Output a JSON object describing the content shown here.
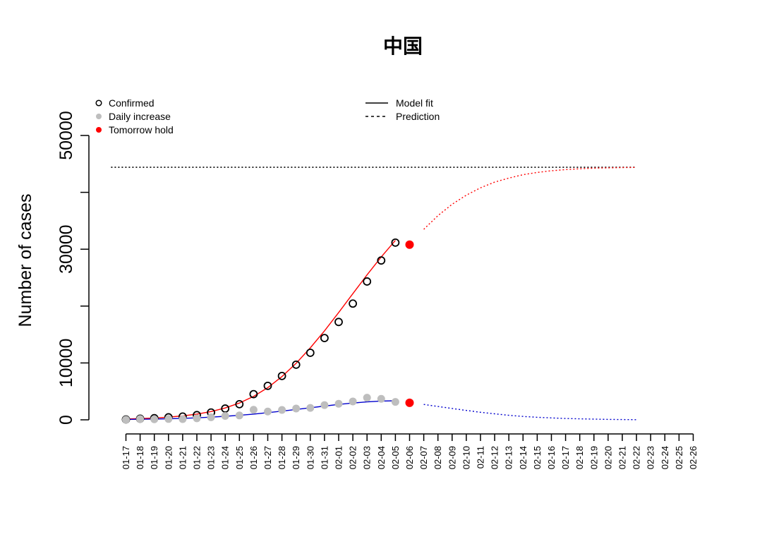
{
  "chart_data": {
    "type": "scatter",
    "title": "中国",
    "xlabel": "",
    "ylabel": "Number of cases",
    "ylim": [
      0,
      50000
    ],
    "y_ticks": [
      0,
      10000,
      30000,
      50000
    ],
    "y_tick_labels": [
      "0",
      "10000",
      "30000",
      "50000"
    ],
    "categories": [
      "01-17",
      "01-18",
      "01-19",
      "01-20",
      "01-21",
      "01-22",
      "01-23",
      "01-24",
      "01-25",
      "01-26",
      "01-27",
      "01-28",
      "01-29",
      "01-30",
      "01-31",
      "02-01",
      "02-02",
      "02-03",
      "02-04",
      "02-05",
      "02-06",
      "02-07",
      "02-08",
      "02-09",
      "02-10",
      "02-11",
      "02-12",
      "02-13",
      "02-14",
      "02-15",
      "02-16",
      "02-17",
      "02-18",
      "02-19",
      "02-20",
      "02-21",
      "02-22",
      "02-23",
      "02-24",
      "02-25",
      "02-26"
    ],
    "series": [
      {
        "name": "Confirmed",
        "kind": "points",
        "color": "#000000",
        "x": [
          "01-17",
          "01-18",
          "01-19",
          "01-20",
          "01-21",
          "01-22",
          "01-23",
          "01-24",
          "01-25",
          "01-26",
          "01-27",
          "01-28",
          "01-29",
          "01-30",
          "01-31",
          "02-01",
          "02-02",
          "02-03",
          "02-04",
          "02-05"
        ],
        "values": [
          62,
          198,
          291,
          440,
          571,
          830,
          1287,
          1975,
          2744,
          4515,
          5974,
          7711,
          9692,
          11791,
          14380,
          17205,
          20438,
          24324,
          28018,
          31161
        ]
      },
      {
        "name": "Daily increase",
        "kind": "points",
        "color": "#bebebe",
        "x": [
          "01-17",
          "01-18",
          "01-19",
          "01-20",
          "01-21",
          "01-22",
          "01-23",
          "01-24",
          "01-25",
          "01-26",
          "01-27",
          "01-28",
          "01-29",
          "01-30",
          "01-31",
          "02-01",
          "02-02",
          "02-03",
          "02-04",
          "02-05"
        ],
        "values": [
          20,
          136,
          93,
          149,
          131,
          259,
          457,
          688,
          769,
          1771,
          1459,
          1737,
          1981,
          2099,
          2589,
          2825,
          3233,
          3886,
          3694,
          3143
        ]
      },
      {
        "name": "Tomorrow hold",
        "kind": "points",
        "color": "#ff0000",
        "x": [
          "02-06",
          "02-06"
        ],
        "values": [
          30800,
          3000
        ]
      },
      {
        "name": "Model fit",
        "kind": "line",
        "color": "#ff0000",
        "x": [
          "01-17",
          "01-18",
          "01-19",
          "01-20",
          "01-21",
          "01-22",
          "01-23",
          "01-24",
          "01-25",
          "01-26",
          "01-27",
          "01-28",
          "01-29",
          "01-30",
          "01-31",
          "02-01",
          "02-02",
          "02-03",
          "02-04",
          "02-05"
        ],
        "values": [
          150,
          220,
          320,
          470,
          690,
          1000,
          1450,
          2080,
          2950,
          4120,
          5660,
          7600,
          9940,
          12650,
          15650,
          18870,
          22180,
          25480,
          28640,
          31550
        ]
      },
      {
        "name": "Model fit",
        "kind": "line",
        "color": "#0000cd",
        "x": [
          "01-17",
          "01-18",
          "01-19",
          "01-20",
          "01-21",
          "01-22",
          "01-23",
          "01-24",
          "01-25",
          "01-26",
          "01-27",
          "01-28",
          "01-29",
          "01-30",
          "01-31",
          "02-01",
          "02-02",
          "02-03",
          "02-04",
          "02-05"
        ],
        "values": [
          70,
          100,
          140,
          190,
          260,
          350,
          470,
          620,
          800,
          1010,
          1260,
          1530,
          1820,
          2120,
          2420,
          2700,
          2950,
          3150,
          3300,
          3350
        ]
      },
      {
        "name": "Prediction",
        "kind": "dotted",
        "color": "#ff0000",
        "x": [
          "02-07",
          "02-08",
          "02-09",
          "02-10",
          "02-11",
          "02-12",
          "02-13",
          "02-14",
          "02-15",
          "02-16",
          "02-17",
          "02-18",
          "02-19",
          "02-20",
          "02-21",
          "02-22"
        ],
        "values": [
          33500,
          35900,
          37900,
          39500,
          40800,
          41800,
          42500,
          43100,
          43500,
          43800,
          44000,
          44150,
          44250,
          44300,
          44350,
          44380
        ]
      },
      {
        "name": "Prediction",
        "kind": "dotted",
        "color": "#0000cd",
        "x": [
          "02-07",
          "02-08",
          "02-09",
          "02-10",
          "02-11",
          "02-12",
          "02-13",
          "02-14",
          "02-15",
          "02-16",
          "02-17",
          "02-18",
          "02-19",
          "02-20",
          "02-21",
          "02-22"
        ],
        "values": [
          2700,
          2350,
          2000,
          1650,
          1330,
          1050,
          800,
          600,
          450,
          330,
          240,
          170,
          120,
          80,
          50,
          30
        ]
      },
      {
        "name": "",
        "kind": "hline",
        "color": "#000000",
        "x": [
          "01-16",
          "02-22"
        ],
        "values": [
          44400,
          44400
        ]
      }
    ],
    "legend": {
      "left": [
        {
          "label": "Confirmed",
          "marker": "open-circle",
          "color": "#000000"
        },
        {
          "label": "Daily increase",
          "marker": "filled-circle",
          "color": "#bebebe"
        },
        {
          "label": "Tomorrow hold",
          "marker": "filled-circle",
          "color": "#ff0000"
        }
      ],
      "right": [
        {
          "label": "Model fit",
          "style": "solid",
          "color": "#000000"
        },
        {
          "label": "Prediction",
          "style": "dashed",
          "color": "#000000"
        }
      ]
    },
    "legend_position": "top"
  }
}
